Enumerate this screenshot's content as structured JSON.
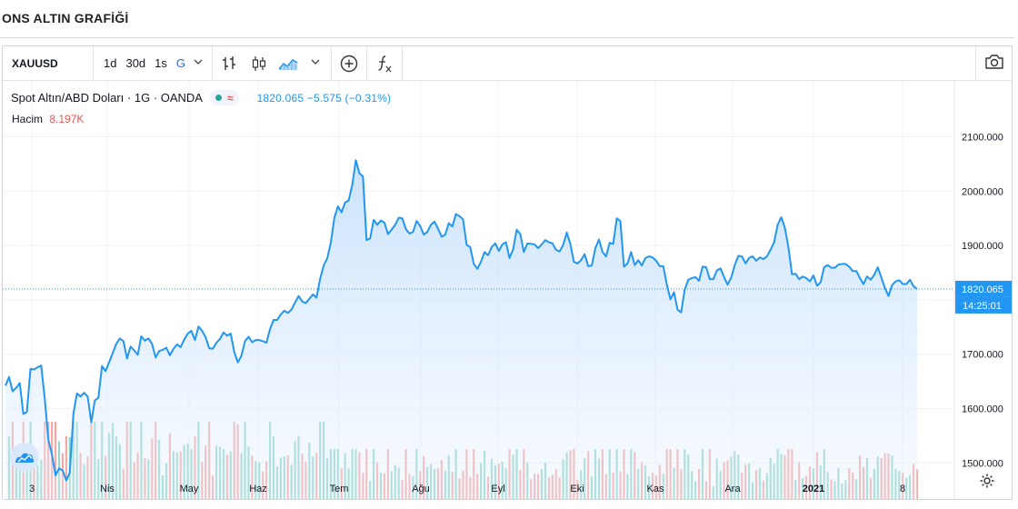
{
  "page": {
    "title": "ONS ALTIN GRAFİĞİ"
  },
  "toolbar": {
    "symbol": "XAUUSD",
    "intervals": [
      "1d",
      "30d",
      "1s",
      "G"
    ],
    "active_interval": "G"
  },
  "legend": {
    "series_name": "Spot Altın/ABD Doları · 1G · OANDA",
    "approx_symbol": "≈",
    "values": "1820.065 −5.575 (−0.31%)",
    "volume_label": "Hacim",
    "volume_value": "8.197K"
  },
  "icons": [
    "chevron-down-icon",
    "bar-style-icon",
    "candle-style-icon",
    "area-style-icon",
    "add-compare-icon",
    "indicators-fx-icon",
    "camera-icon",
    "brand-logo-icon",
    "settings-gear-icon"
  ],
  "colors": {
    "line": "#2196f3",
    "fill": "#d8e9fc",
    "vol_up": "#7fcfc0",
    "vol_down": "#f29a98",
    "last_price_bg": "#2196f3",
    "accent": "#2962ff"
  },
  "chart_data": {
    "type": "area",
    "x_tick_labels": [
      "3",
      "Nis",
      "May",
      "Haz",
      "Tem",
      "Ağu",
      "Eyl",
      "Eki",
      "Kas",
      "Ara",
      "2021",
      "8"
    ],
    "y_tick_labels": [
      "2100.000",
      "2000.000",
      "1900.000",
      "1800.000",
      "1700.000",
      "1600.000",
      "1500.000"
    ],
    "ylim": [
      1415,
      2180
    ],
    "last_price": "1820.065",
    "last_time": "14:25:01",
    "grid": true,
    "volume_ylim": [
      0,
      10000
    ],
    "series": [
      {
        "name": "Spot Altın/ABD Doları",
        "values": [
          1642,
          1658,
          1632,
          1638,
          1647,
          1590,
          1594,
          1673,
          1672,
          1676,
          1679,
          1618,
          1542,
          1516,
          1477,
          1490,
          1486,
          1468,
          1482,
          1590,
          1628,
          1622,
          1629,
          1622,
          1575,
          1615,
          1620,
          1678,
          1669,
          1685,
          1702,
          1719,
          1729,
          1724,
          1692,
          1714,
          1707,
          1699,
          1733,
          1725,
          1729,
          1719,
          1694,
          1706,
          1708,
          1712,
          1698,
          1710,
          1718,
          1713,
          1727,
          1738,
          1743,
          1726,
          1751,
          1743,
          1731,
          1711,
          1710,
          1721,
          1728,
          1740,
          1734,
          1738,
          1704,
          1685,
          1697,
          1724,
          1732,
          1722,
          1726,
          1726,
          1724,
          1721,
          1746,
          1763,
          1763,
          1773,
          1780,
          1776,
          1782,
          1795,
          1807,
          1797,
          1794,
          1802,
          1810,
          1804,
          1838,
          1863,
          1876,
          1905,
          1951,
          1972,
          1961,
          1979,
          1983,
          2011,
          2057,
          2033,
          2027,
          1910,
          1913,
          1947,
          1938,
          1946,
          1942,
          1921,
          1929,
          1938,
          1951,
          1950,
          1930,
          1922,
          1925,
          1945,
          1936,
          1920,
          1925,
          1938,
          1944,
          1931,
          1916,
          1920,
          1941,
          1935,
          1958,
          1954,
          1948,
          1901,
          1897,
          1866,
          1857,
          1870,
          1888,
          1882,
          1897,
          1904,
          1890,
          1902,
          1906,
          1877,
          1893,
          1929,
          1921,
          1888,
          1904,
          1903,
          1902,
          1895,
          1902,
          1910,
          1906,
          1904,
          1892,
          1889,
          1901,
          1924,
          1903,
          1870,
          1867,
          1873,
          1884,
          1862,
          1863,
          1895,
          1911,
          1888,
          1880,
          1905,
          1903,
          1950,
          1945,
          1861,
          1867,
          1888,
          1864,
          1873,
          1863,
          1877,
          1880,
          1878,
          1872,
          1862,
          1862,
          1828,
          1801,
          1814,
          1782,
          1777,
          1819,
          1837,
          1840,
          1842,
          1835,
          1861,
          1860,
          1838,
          1838,
          1854,
          1858,
          1842,
          1828,
          1841,
          1864,
          1881,
          1880,
          1867,
          1877,
          1880,
          1872,
          1878,
          1875,
          1880,
          1892,
          1906,
          1938,
          1952,
          1933,
          1897,
          1847,
          1848,
          1838,
          1843,
          1840,
          1834,
          1845,
          1826,
          1832,
          1860,
          1864,
          1859,
          1859,
          1865,
          1866,
          1866,
          1861,
          1853,
          1853,
          1840,
          1829,
          1843,
          1837,
          1846,
          1860,
          1841,
          1822,
          1807,
          1827,
          1834,
          1836,
          1829,
          1829,
          1837,
          1825,
          1820
        ]
      }
    ]
  }
}
